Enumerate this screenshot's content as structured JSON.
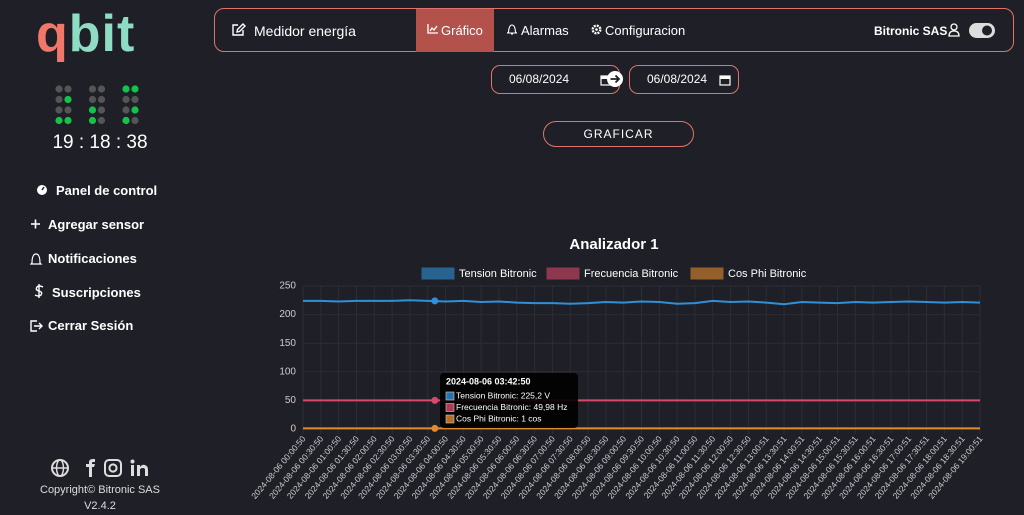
{
  "sidebar": {
    "logo": [
      "q",
      "bit"
    ],
    "clock": "19 : 18 : 38",
    "menu": [
      "Panel de control",
      "Agregar sensor",
      "Notificaciones",
      "Suscripciones",
      "Cerrar Sesión"
    ],
    "copyright": "Copyright© Bitronic SAS",
    "version": "V2.4.2"
  },
  "header": {
    "title": "Medidor energía",
    "tabs": [
      "Gráfico",
      "Alarmas",
      "Configuracion"
    ],
    "user": "Bitronic SAS"
  },
  "form": {
    "date_from": "06/08/2024",
    "date_to": "06/08/2024",
    "button": "GRAFICAR"
  },
  "chart_data": {
    "type": "line",
    "title": "Analizador 1",
    "categories": [
      "2024-08-06 00:00:50",
      "2024-08-06 00:30:50",
      "2024-08-06 01:00:50",
      "2024-08-06 01:30:50",
      "2024-08-06 02:00:50",
      "2024-08-06 02:30:50",
      "2024-08-06 03:00:50",
      "2024-08-06 03:30:50",
      "2024-08-06 04:00:50",
      "2024-08-06 04:30:50",
      "2024-08-06 05:00:50",
      "2024-08-06 05:30:50",
      "2024-08-06 06:00:50",
      "2024-08-06 06:30:50",
      "2024-08-06 07:00:50",
      "2024-08-06 07:30:50",
      "2024-08-06 08:00:50",
      "2024-08-06 08:30:50",
      "2024-08-06 09:00:50",
      "2024-08-06 09:30:50",
      "2024-08-06 10:00:50",
      "2024-08-06 10:30:50",
      "2024-08-06 11:00:50",
      "2024-08-06 11:30:50",
      "2024-08-06 12:00:50",
      "2024-08-06 12:30:50",
      "2024-08-06 13:00:51",
      "2024-08-06 13:30:51",
      "2024-08-06 14:00:51",
      "2024-08-06 14:30:51",
      "2024-08-06 15:00:51",
      "2024-08-06 15:30:51",
      "2024-08-06 16:00:51",
      "2024-08-06 16:30:51",
      "2024-08-06 17:00:51",
      "2024-08-06 17:30:51",
      "2024-08-06 18:00:51",
      "2024-08-06 18:30:51",
      "2024-08-06 19:00:51"
    ],
    "series": [
      {
        "name": "Tension Bitronic",
        "color": "#2f8fd8",
        "values": [
          224,
          224,
          223,
          224,
          224,
          224,
          225,
          224,
          223,
          224,
          222,
          223,
          221,
          220,
          220,
          219,
          220,
          222,
          221,
          223,
          222,
          219,
          220,
          224,
          222,
          223,
          221,
          218,
          222,
          221,
          220,
          222,
          221,
          222,
          223,
          222,
          221,
          222,
          221
        ]
      },
      {
        "name": "Frecuencia Bitronic",
        "color": "#d9486b",
        "values": [
          50,
          50,
          50,
          50,
          50,
          50,
          50,
          50,
          50,
          50,
          50,
          50,
          50,
          50,
          50,
          50,
          50,
          50,
          50,
          50,
          50,
          50,
          50,
          50,
          50,
          50,
          50,
          50,
          50,
          50,
          50,
          50,
          50,
          50,
          50,
          50,
          50,
          50,
          50
        ]
      },
      {
        "name": "Cos Phi Bitronic",
        "color": "#e3892f",
        "values": [
          1,
          1,
          1,
          1,
          1,
          1,
          1,
          1,
          1,
          1,
          1,
          1,
          1,
          1,
          1,
          1,
          1,
          1,
          1,
          1,
          1,
          1,
          1,
          1,
          1,
          1,
          1,
          1,
          1,
          1,
          1,
          1,
          1,
          1,
          1,
          1,
          1,
          1,
          1
        ]
      }
    ],
    "ylim": [
      0,
      250
    ],
    "yticks": [
      0,
      50,
      100,
      150,
      200,
      250
    ],
    "grid": true
  },
  "tooltip": {
    "title": "2024-08-06 03:42:50",
    "lines": [
      "Tension Bitronic: 225,2 V",
      "Frecuencia Bitronic: 49,98 Hz",
      "Cos Phi Bitronic: 1 cos"
    ]
  }
}
